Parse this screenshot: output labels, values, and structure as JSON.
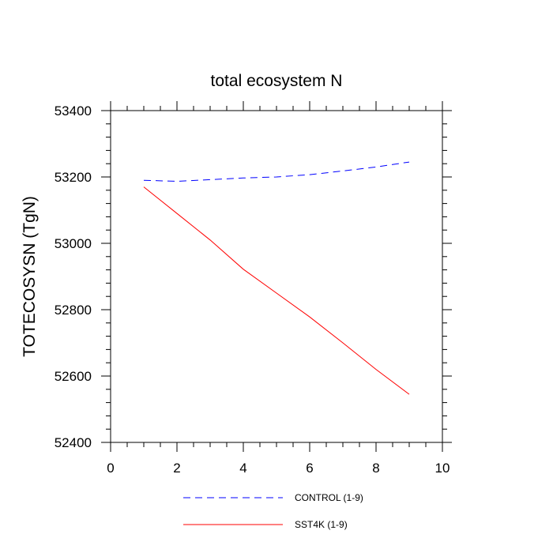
{
  "chart_data": {
    "type": "line",
    "title": "total ecosystem N",
    "xlabel": "",
    "ylabel": "TOTECOSYSN  (TgN)",
    "xlim": [
      0,
      10
    ],
    "ylim": [
      52400,
      53400
    ],
    "x_ticks": [
      0,
      2,
      4,
      6,
      8,
      10
    ],
    "y_ticks": [
      52400,
      52600,
      52800,
      53000,
      53200,
      53400
    ],
    "x_tick_labels": [
      "0",
      "2",
      "4",
      "6",
      "8",
      "10"
    ],
    "y_tick_labels": [
      "52400",
      "52600",
      "52800",
      "53000",
      "53200",
      "53400"
    ],
    "x_minor_step": 0.5,
    "y_minor_step": 40,
    "grid": false,
    "legend_position": "bottom",
    "x": [
      1,
      2,
      3,
      4,
      5,
      6,
      7,
      8,
      9
    ],
    "series": [
      {
        "name": "CONTROL (1-9)",
        "color": "#0000ff",
        "dashed": true,
        "values": [
          53190,
          53187,
          53192,
          53197,
          53200,
          53207,
          53218,
          53230,
          53245
        ]
      },
      {
        "name": "SST4K (1-9)",
        "color": "#ff0000",
        "dashed": false,
        "values": [
          53170,
          53090,
          53010,
          52922,
          52850,
          52778,
          52700,
          52620,
          52545
        ]
      }
    ]
  }
}
